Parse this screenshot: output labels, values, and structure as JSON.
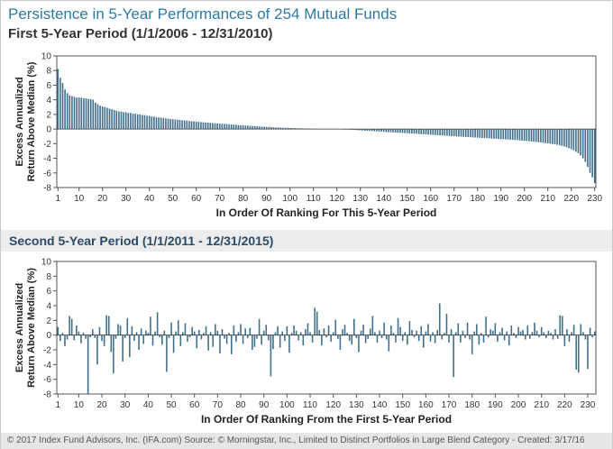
{
  "title": "Persistence in 5-Year Performances of 254 Mutual Funds",
  "footer": "© 2017 Index Fund Advisors, Inc. (IFA.com)   Source: © Morningstar, Inc., Limited to Distinct Portfolios in Large Blend Category - Created: 3/17/16",
  "colors": {
    "bar": "#3f6f8e",
    "title": "#2d7aa6"
  },
  "chart_data": [
    {
      "type": "bar",
      "title": "First 5-Year Period  (1/1/2006 - 12/31/2010)",
      "xlabel": "In Order Of Ranking For This 5-Year Period",
      "ylabel": "Excess Annualized Return Above Median (%)",
      "ylim": [
        -8,
        10
      ],
      "yticks": [
        "-8",
        "-6",
        "-4",
        "-2",
        "0",
        "2",
        "4",
        "6",
        "8",
        "10"
      ],
      "xticks": [
        "1",
        "10",
        "20",
        "30",
        "40",
        "50",
        "60",
        "70",
        "80",
        "90",
        "100",
        "110",
        "120",
        "130",
        "140",
        "150",
        "160",
        "170",
        "180",
        "190",
        "200",
        "210",
        "220",
        "230"
      ],
      "series": [
        {
          "values": [
            8.2,
            7.0,
            6.3,
            5.4,
            4.9,
            4.6,
            4.5,
            4.4,
            4.3,
            4.3,
            4.3,
            4.2,
            4.2,
            4.1,
            4.1,
            4.0,
            3.6,
            3.4,
            3.2,
            3.1,
            3.0,
            2.9,
            2.8,
            2.7,
            2.6,
            2.5,
            2.4,
            2.4,
            2.3,
            2.3,
            2.2,
            2.2,
            2.1,
            2.1,
            2.0,
            2.0,
            1.9,
            1.9,
            1.8,
            1.8,
            1.7,
            1.7,
            1.6,
            1.6,
            1.55,
            1.5,
            1.45,
            1.4,
            1.38,
            1.35,
            1.3,
            1.28,
            1.25,
            1.2,
            1.18,
            1.15,
            1.1,
            1.08,
            1.05,
            1.0,
            0.98,
            0.95,
            0.92,
            0.9,
            0.88,
            0.85,
            0.82,
            0.8,
            0.78,
            0.75,
            0.72,
            0.7,
            0.68,
            0.65,
            0.62,
            0.6,
            0.58,
            0.55,
            0.53,
            0.5,
            0.48,
            0.46,
            0.44,
            0.42,
            0.4,
            0.38,
            0.36,
            0.34,
            0.32,
            0.3,
            0.28,
            0.26,
            0.24,
            0.22,
            0.21,
            0.2,
            0.18,
            0.17,
            0.16,
            0.15,
            0.14,
            0.13,
            0.12,
            0.11,
            0.1,
            0.09,
            0.08,
            0.07,
            0.06,
            0.05,
            0.04,
            0.03,
            0.02,
            0.01,
            0.0,
            0.0,
            -0.01,
            -0.02,
            -0.03,
            -0.04,
            -0.05,
            -0.06,
            -0.07,
            -0.08,
            -0.09,
            -0.1,
            -0.12,
            -0.14,
            -0.16,
            -0.18,
            -0.2,
            -0.22,
            -0.24,
            -0.26,
            -0.28,
            -0.3,
            -0.32,
            -0.34,
            -0.36,
            -0.38,
            -0.4,
            -0.42,
            -0.44,
            -0.46,
            -0.48,
            -0.5,
            -0.52,
            -0.54,
            -0.56,
            -0.58,
            -0.6,
            -0.62,
            -0.64,
            -0.66,
            -0.68,
            -0.7,
            -0.72,
            -0.74,
            -0.76,
            -0.78,
            -0.8,
            -0.82,
            -0.84,
            -0.86,
            -0.88,
            -0.9,
            -0.92,
            -0.94,
            -0.96,
            -0.98,
            -1.0,
            -1.02,
            -1.04,
            -1.06,
            -1.08,
            -1.1,
            -1.12,
            -1.14,
            -1.16,
            -1.18,
            -1.2,
            -1.22,
            -1.24,
            -1.26,
            -1.28,
            -1.3,
            -1.32,
            -1.34,
            -1.36,
            -1.38,
            -1.4,
            -1.42,
            -1.44,
            -1.46,
            -1.48,
            -1.5,
            -1.52,
            -1.55,
            -1.58,
            -1.6,
            -1.63,
            -1.66,
            -1.7,
            -1.73,
            -1.76,
            -1.8,
            -1.84,
            -1.88,
            -1.92,
            -1.96,
            -2.0,
            -2.05,
            -2.1,
            -2.15,
            -2.2,
            -2.3,
            -2.4,
            -2.5,
            -2.6,
            -2.75,
            -2.9,
            -3.1,
            -3.3,
            -3.6,
            -4.0,
            -4.5,
            -5.2,
            -6.0,
            -6.6,
            -7.4
          ]
        }
      ]
    },
    {
      "type": "bar",
      "title": "Second 5-Year Period (1/1/2011 - 12/31/2015)",
      "xlabel": "In Order Of Ranking From the First 5-Year Period",
      "ylabel": "Excess Annualized Return Above Median (%)",
      "ylim": [
        -8,
        10
      ],
      "yticks": [
        "-8",
        "-6",
        "-4",
        "-2",
        "0",
        "2",
        "4",
        "6",
        "8",
        "10"
      ],
      "xticks": [
        "1",
        "10",
        "20",
        "30",
        "40",
        "50",
        "60",
        "70",
        "80",
        "90",
        "100",
        "110",
        "120",
        "130",
        "140",
        "150",
        "160",
        "170",
        "180",
        "190",
        "200",
        "210",
        "220",
        "230"
      ],
      "series": [
        {
          "values": [
            1.1,
            -0.8,
            0.3,
            -1.5,
            -0.6,
            2.6,
            2.2,
            -0.7,
            1.3,
            0.5,
            -1.1,
            0.3,
            -0.5,
            -8.0,
            -0.3,
            0.8,
            -0.4,
            -4.0,
            1.1,
            -0.8,
            -1.5,
            2.7,
            2.6,
            -2.3,
            -5.2,
            -0.5,
            1.5,
            1.3,
            -3.6,
            -0.4,
            2.3,
            -3.0,
            1.2,
            -0.8,
            0.4,
            -2.0,
            0.9,
            -1.2,
            0.6,
            0.3,
            2.5,
            -1.4,
            0.5,
            3.1,
            -0.3,
            -1.3,
            0.6,
            -5.0,
            -0.4,
            1.7,
            -2.4,
            0.5,
            2.0,
            -1.5,
            0.4,
            1.6,
            -0.9,
            -0.3,
            1.1,
            0.5,
            -1.8,
            0.7,
            -0.6,
            0.3,
            1.2,
            -2.1,
            0.4,
            -1.6,
            1.5,
            0.6,
            -2.5,
            0.8,
            -0.5,
            -1.2,
            0.3,
            -2.6,
            1.3,
            -0.9,
            0.4,
            1.5,
            -1.2,
            0.9,
            -0.4,
            1.0,
            -2.0,
            -1.6,
            -0.5,
            2.2,
            -1.3,
            0.6,
            1.4,
            -0.7,
            -5.6,
            -1.9,
            0.4,
            1.2,
            -1.7,
            0.5,
            -0.8,
            1.2,
            -2.4,
            0.3,
            1.3,
            0.6,
            -0.7,
            0.4,
            -1.4,
            0.8,
            1.6,
            0.4,
            -1.0,
            3.7,
            3.2,
            0.7,
            -1.4,
            0.9,
            -0.3,
            1.3,
            -0.9,
            0.4,
            2.1,
            -0.5,
            -2.0,
            0.8,
            1.4,
            0.3,
            -0.8,
            -1.3,
            2.2,
            -0.4,
            -2.3,
            0.6,
            1.4,
            -1.1,
            -0.5,
            0.9,
            2.6,
            0.4,
            -1.0,
            0.6,
            -0.4,
            1.7,
            -0.6,
            -2.2,
            1.3,
            0.3,
            -1.0,
            2.3,
            1.1,
            -0.8,
            0.4,
            -1.3,
            1.9,
            0.7,
            -0.3,
            0.6,
            -0.8,
            1.2,
            -1.7,
            0.5,
            1.5,
            -0.9,
            0.4,
            -1.1,
            0.7,
            4.3,
            -0.6,
            0.3,
            2.9,
            -1.0,
            0.8,
            -5.7,
            0.4,
            1.6,
            -1.0,
            0.6,
            -0.4,
            1.7,
            -0.6,
            -2.6,
            0.5,
            1.5,
            -1.3,
            0.3,
            -1.0,
            2.5,
            -0.3,
            0.8,
            0.6,
            1.6,
            -0.9,
            0.4,
            1.0,
            -0.7,
            0.5,
            -1.4,
            1.3,
            0.3,
            -0.4,
            1.1,
            0.5,
            0.7,
            -0.6,
            1.3,
            -0.5,
            0.4,
            1.7,
            0.6,
            -0.3,
            1.1,
            0.4,
            -0.4,
            0.6,
            0.3,
            -0.6,
            0.8,
            -0.5,
            2.7,
            2.6,
            -1.5,
            0.8,
            -0.9,
            0.4,
            1.4,
            -4.7,
            -5.1,
            1.5,
            0.4,
            -0.6,
            -4.6,
            1.0,
            -0.3,
            0.5
          ]
        }
      ]
    }
  ]
}
